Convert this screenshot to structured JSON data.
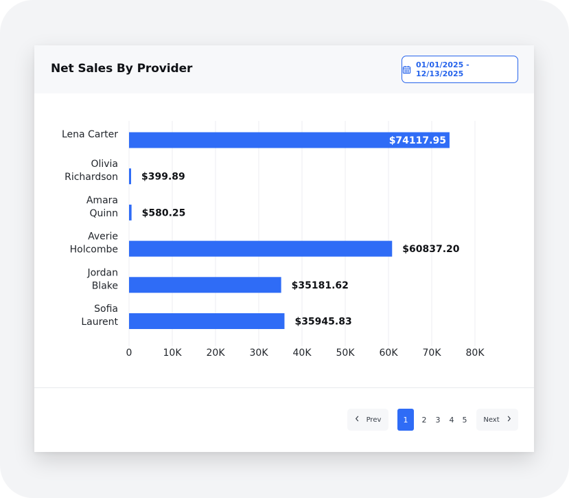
{
  "card": {
    "title": "Net Sales By Provider",
    "date_range": "01/01/2025 - 12/13/2025"
  },
  "chart_data": {
    "type": "bar",
    "orientation": "horizontal",
    "title": "",
    "xlabel": "",
    "ylabel": "",
    "categories": [
      [
        "Lena Carter"
      ],
      [
        "Olivia",
        "Richardson"
      ],
      [
        "Amara",
        "Quinn"
      ],
      [
        "Averie",
        "Holcombe"
      ],
      [
        "Jordan",
        "Blake"
      ],
      [
        "Sofia",
        "Laurent"
      ]
    ],
    "values": [
      74117.95,
      399.89,
      580.25,
      60837.2,
      35181.62,
      35945.83
    ],
    "value_labels": [
      "$74117.95",
      "$399.89",
      "$580.25",
      "$60837.20",
      "$35181.62",
      "$35945.83"
    ],
    "xlim": [
      0,
      80000
    ],
    "xticks": [
      0,
      10000,
      20000,
      30000,
      40000,
      50000,
      60000,
      70000,
      80000
    ],
    "xtick_labels": [
      "0",
      "10K",
      "20K",
      "30K",
      "40K",
      "50K",
      "60K",
      "70K",
      "80K"
    ],
    "grid": "vertical",
    "legend": "none",
    "bar_color": "#2f6cf6",
    "grid_color": "#eceef1"
  },
  "pagination": {
    "prev_label": "Prev",
    "next_label": "Next",
    "pages": [
      "1",
      "2",
      "3",
      "4",
      "5"
    ],
    "current": "1"
  },
  "icons": {
    "date": "calendar-icon",
    "prev": "chevron-left-icon",
    "next": "chevron-right-icon"
  },
  "colors": {
    "accent": "#2563eb",
    "text": "#0f1115"
  }
}
